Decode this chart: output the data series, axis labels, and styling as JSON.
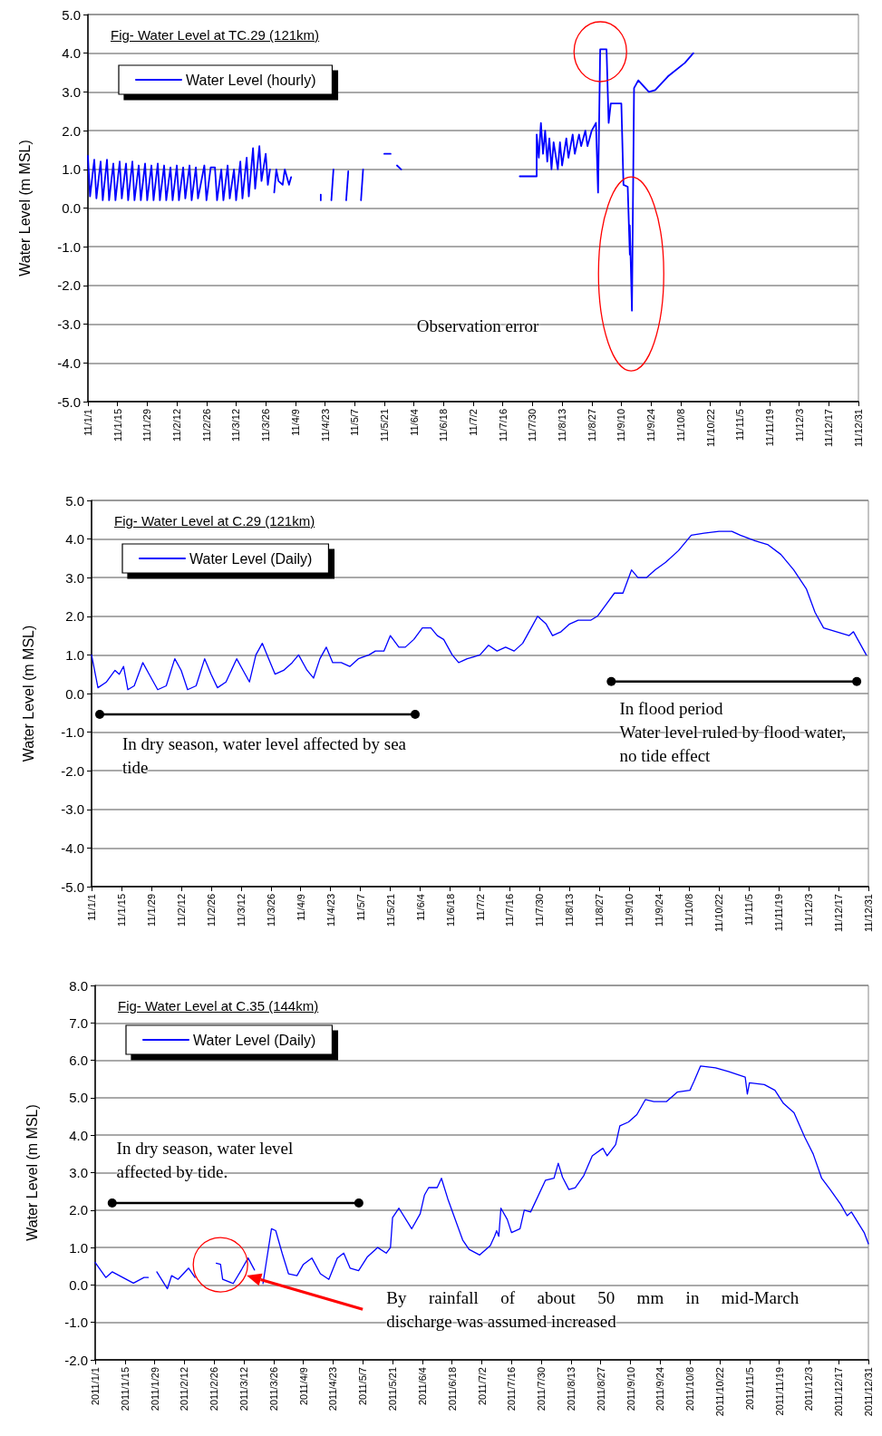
{
  "chart_data": [
    {
      "type": "line",
      "title": "Fig- Water Level at TC.29 (121km)",
      "ylabel": "Water Level (m MSL)",
      "grid": "y",
      "legend": "top left",
      "marker": "none",
      "annotations": [
        "Observation  error"
      ],
      "xlim": [
        "2011-01-01",
        "2011-12-31"
      ],
      "xticks": [
        {
          "value": "2011-01-01",
          "label": "11/1/1"
        },
        {
          "value": "2011-01-15",
          "label": "11/1/15"
        },
        {
          "value": "2011-01-29",
          "label": "11/1/29"
        },
        {
          "value": "2011-02-12",
          "label": "11/2/12"
        },
        {
          "value": "2011-02-26",
          "label": "11/2/26"
        },
        {
          "value": "2011-03-12",
          "label": "11/3/12"
        },
        {
          "value": "2011-03-26",
          "label": "11/3/26"
        },
        {
          "value": "2011-04-09",
          "label": "11/4/9"
        },
        {
          "value": "2011-04-23",
          "label": "11/4/23"
        },
        {
          "value": "2011-05-07",
          "label": "11/5/7"
        },
        {
          "value": "2011-05-21",
          "label": "11/5/21"
        },
        {
          "value": "2011-06-04",
          "label": "11/6/4"
        },
        {
          "value": "2011-06-18",
          "label": "11/6/18"
        },
        {
          "value": "2011-07-02",
          "label": "11/7/2"
        },
        {
          "value": "2011-07-16",
          "label": "11/7/16"
        },
        {
          "value": "2011-07-30",
          "label": "11/7/30"
        },
        {
          "value": "2011-08-13",
          "label": "11/8/13"
        },
        {
          "value": "2011-08-27",
          "label": "11/8/27"
        },
        {
          "value": "2011-09-10",
          "label": "11/9/10"
        },
        {
          "value": "2011-09-24",
          "label": "11/9/24"
        },
        {
          "value": "2011-10-08",
          "label": "11/10/8"
        },
        {
          "value": "2011-10-22",
          "label": "11/10/22"
        },
        {
          "value": "2011-11-05",
          "label": "11/11/5"
        },
        {
          "value": "2011-11-19",
          "label": "11/11/19"
        },
        {
          "value": "2011-12-03",
          "label": "11/12/3"
        },
        {
          "value": "2011-12-17",
          "label": "11/12/17"
        },
        {
          "value": "2011-12-31",
          "label": "11/12/31"
        }
      ],
      "ylim": [
        -5,
        5
      ],
      "yticks": [
        {
          "value": -5,
          "label": "-5.0"
        },
        {
          "value": -4,
          "label": "-4.0"
        },
        {
          "value": -3,
          "label": "-3.0"
        },
        {
          "value": -2,
          "label": "-2.0"
        },
        {
          "value": -1,
          "label": "-1.0"
        },
        {
          "value": 0,
          "label": "0.0"
        },
        {
          "value": 1,
          "label": "1.0"
        },
        {
          "value": 2,
          "label": "2.0"
        },
        {
          "value": 3,
          "label": "3.0"
        },
        {
          "value": 4,
          "label": "4.0"
        },
        {
          "value": 5,
          "label": "5.0"
        }
      ],
      "x": [
        "2011-01-01",
        "2011-01-02",
        "2011-01-04",
        "2011-01-05",
        "2011-01-07",
        "2011-01-08",
        "2011-01-10",
        "2011-01-11",
        "2011-01-13",
        "2011-01-14",
        "2011-01-16",
        "2011-01-17",
        "2011-01-19",
        "2011-01-20",
        "2011-01-22",
        "2011-01-23",
        "2011-01-25",
        "2011-01-26",
        "2011-01-28",
        "2011-01-29",
        "2011-01-31",
        "2011-02-01",
        "2011-02-03",
        "2011-02-04",
        "2011-02-06",
        "2011-02-07",
        "2011-02-09",
        "2011-02-10",
        "2011-02-12",
        "2011-02-13",
        "2011-02-15",
        "2011-02-16",
        "2011-02-18",
        "2011-02-19",
        "2011-02-21",
        "2011-02-22",
        "2011-02-25",
        "2011-02-26",
        "2011-02-28",
        "2011-03-02",
        "2011-03-03",
        "2011-03-05",
        "2011-03-06",
        "2011-03-08",
        "2011-03-09",
        "2011-03-11",
        "2011-03-12",
        "2011-03-14",
        "2011-03-15",
        "2011-03-17",
        "2011-03-18",
        "2011-03-20",
        "2011-03-21",
        "2011-03-23",
        "2011-03-24",
        "2011-03-26",
        "2011-03-27",
        "2011-03-28",
        "2011-03-29",
        "2011-03-30",
        "2011-03-31",
        "2011-04-01",
        "2011-04-03",
        "2011-04-04",
        "2011-04-06",
        "2011-04-07",
        "2011-04-08",
        "2011-04-21",
        "2011-04-21",
        "2011-04-23",
        "2011-04-26",
        "2011-04-27",
        "2011-04-28",
        "2011-05-03",
        "2011-05-04",
        "2011-05-05",
        "2011-05-10",
        "2011-05-11",
        "2011-05-12",
        "2011-05-21",
        "2011-05-24",
        "2011-05-25",
        "2011-05-27",
        "2011-05-29",
        "2011-05-31",
        "2011-07-24",
        "2011-08-01",
        "2011-08-01",
        "2011-08-02",
        "2011-08-03",
        "2011-08-04",
        "2011-08-05",
        "2011-08-06",
        "2011-08-07",
        "2011-08-08",
        "2011-08-09",
        "2011-08-11",
        "2011-08-12",
        "2011-08-13",
        "2011-08-15",
        "2011-08-16",
        "2011-08-18",
        "2011-08-19",
        "2011-08-21",
        "2011-08-22",
        "2011-08-24",
        "2011-08-25",
        "2011-08-27",
        "2011-08-29",
        "2011-08-30",
        "2011-08-31",
        "2011-09-03",
        "2011-09-04",
        "2011-09-05",
        "2011-09-10",
        "2011-09-11",
        "2011-09-13",
        "2011-09-14",
        "2011-09-14",
        "2011-09-15",
        "2011-09-16",
        "2011-09-18",
        "2011-09-23",
        "2011-09-26",
        "2011-10-02",
        "2011-10-10",
        "2011-10-14"
      ],
      "series": [
        {
          "name": "Water Level (hourly)",
          "color": "#0000ff",
          "values": [
            1.35,
            0.3,
            1.25,
            0.25,
            1.2,
            0.2,
            1.25,
            0.2,
            1.15,
            0.2,
            1.2,
            0.25,
            1.15,
            0.2,
            1.2,
            0.2,
            1.1,
            0.2,
            1.15,
            0.2,
            1.1,
            0.2,
            1.15,
            0.2,
            1.1,
            0.2,
            1.05,
            0.2,
            1.1,
            0.2,
            1.05,
            0.25,
            1.1,
            0.2,
            1.05,
            0.25,
            1.1,
            0.2,
            1.05,
            1.05,
            0.2,
            1.0,
            0.2,
            1.1,
            0.25,
            1.0,
            0.2,
            1.2,
            0.25,
            1.3,
            0.3,
            1.55,
            0.5,
            1.6,
            0.7,
            1.4,
            0.6,
            1.0,
            null,
            0.4,
            1.0,
            0.7,
            0.6,
            1.0,
            0.6,
            0.8,
            null,
            0.35,
            0.2,
            null,
            0.2,
            1.0,
            null,
            0.2,
            0.95,
            null,
            0.2,
            1.0,
            null,
            1.4,
            1.4,
            null,
            1.1,
            1.0,
            null,
            0.82,
            0.82,
            1.9,
            1.3,
            2.2,
            1.4,
            2.0,
            1.2,
            1.8,
            1.0,
            1.7,
            1.0,
            1.7,
            1.1,
            1.8,
            1.3,
            1.9,
            1.4,
            1.9,
            1.6,
            2.0,
            1.6,
            2.0,
            2.2,
            0.4,
            4.1,
            4.1,
            2.2,
            2.7,
            2.7,
            0.6,
            0.55,
            -1.2,
            -0.45,
            -2.65,
            3.1,
            3.3,
            3.0,
            3.05,
            3.4,
            3.75,
            4.0
          ]
        }
      ]
    },
    {
      "type": "line",
      "title": "Fig- Water Level at C.29 (121km)",
      "ylabel": "Water Level (m MSL)",
      "grid": "y",
      "legend": "top left",
      "marker": "none",
      "annotations": [
        "In dry season, water level affected by sea tide",
        "In flood period\nWater level ruled by flood water, no tide effect"
      ],
      "xlim": [
        "2011-01-01",
        "2011-12-31"
      ],
      "xticks": [
        {
          "value": "2011-01-01",
          "label": "11/1/1"
        },
        {
          "value": "2011-01-15",
          "label": "11/1/15"
        },
        {
          "value": "2011-01-29",
          "label": "11/1/29"
        },
        {
          "value": "2011-02-12",
          "label": "11/2/12"
        },
        {
          "value": "2011-02-26",
          "label": "11/2/26"
        },
        {
          "value": "2011-03-12",
          "label": "11/3/12"
        },
        {
          "value": "2011-03-26",
          "label": "11/3/26"
        },
        {
          "value": "2011-04-09",
          "label": "11/4/9"
        },
        {
          "value": "2011-04-23",
          "label": "11/4/23"
        },
        {
          "value": "2011-05-07",
          "label": "11/5/7"
        },
        {
          "value": "2011-05-21",
          "label": "11/5/21"
        },
        {
          "value": "2011-06-04",
          "label": "11/6/4"
        },
        {
          "value": "2011-06-18",
          "label": "11/6/18"
        },
        {
          "value": "2011-07-02",
          "label": "11/7/2"
        },
        {
          "value": "2011-07-16",
          "label": "11/7/16"
        },
        {
          "value": "2011-07-30",
          "label": "11/7/30"
        },
        {
          "value": "2011-08-13",
          "label": "11/8/13"
        },
        {
          "value": "2011-08-27",
          "label": "11/8/27"
        },
        {
          "value": "2011-09-10",
          "label": "11/9/10"
        },
        {
          "value": "2011-09-24",
          "label": "11/9/24"
        },
        {
          "value": "2011-10-08",
          "label": "11/10/8"
        },
        {
          "value": "2011-10-22",
          "label": "11/10/22"
        },
        {
          "value": "2011-11-05",
          "label": "11/11/5"
        },
        {
          "value": "2011-11-19",
          "label": "11/11/19"
        },
        {
          "value": "2011-12-03",
          "label": "11/12/3"
        },
        {
          "value": "2011-12-17",
          "label": "11/12/17"
        },
        {
          "value": "2011-12-31",
          "label": "11/12/31"
        }
      ],
      "ylim": [
        -5,
        5
      ],
      "yticks": [
        {
          "value": -5,
          "label": "-5.0"
        },
        {
          "value": -4,
          "label": "-4.0"
        },
        {
          "value": -3,
          "label": "-3.0"
        },
        {
          "value": -2,
          "label": "-2.0"
        },
        {
          "value": -1,
          "label": "-1.0"
        },
        {
          "value": 0,
          "label": "0.0"
        },
        {
          "value": 1,
          "label": "1.0"
        },
        {
          "value": 2,
          "label": "2.0"
        },
        {
          "value": 3,
          "label": "3.0"
        },
        {
          "value": 4,
          "label": "4.0"
        },
        {
          "value": 5,
          "label": "5.0"
        }
      ],
      "x": [
        "2011-01-01",
        "2011-01-04",
        "2011-01-08",
        "2011-01-12",
        "2011-01-14",
        "2011-01-16",
        "2011-01-18",
        "2011-01-21",
        "2011-01-25",
        "2011-01-28",
        "2011-02-01",
        "2011-02-05",
        "2011-02-09",
        "2011-02-12",
        "2011-02-15",
        "2011-02-19",
        "2011-02-23",
        "2011-02-26",
        "2011-03-01",
        "2011-03-05",
        "2011-03-10",
        "2011-03-13",
        "2011-03-16",
        "2011-03-19",
        "2011-03-22",
        "2011-03-25",
        "2011-03-28",
        "2011-04-01",
        "2011-04-05",
        "2011-04-08",
        "2011-04-12",
        "2011-04-15",
        "2011-04-18",
        "2011-04-21",
        "2011-04-24",
        "2011-04-28",
        "2011-05-02",
        "2011-05-06",
        "2011-05-11",
        "2011-05-14",
        "2011-05-18",
        "2011-05-21",
        "2011-05-25",
        "2011-05-28",
        "2011-06-01",
        "2011-06-05",
        "2011-06-09",
        "2011-06-12",
        "2011-06-15",
        "2011-06-19",
        "2011-06-22",
        "2011-06-26",
        "2011-06-29",
        "2011-07-02",
        "2011-07-06",
        "2011-07-10",
        "2011-07-14",
        "2011-07-18",
        "2011-07-22",
        "2011-07-26",
        "2011-07-29",
        "2011-08-02",
        "2011-08-05",
        "2011-08-09",
        "2011-08-13",
        "2011-08-17",
        "2011-08-23",
        "2011-08-26",
        "2011-08-30",
        "2011-09-03",
        "2011-09-07",
        "2011-09-09",
        "2011-09-11",
        "2011-09-14",
        "2011-09-18",
        "2011-09-22",
        "2011-09-27",
        "2011-10-03",
        "2011-10-09",
        "2011-10-15",
        "2011-10-22",
        "2011-10-28",
        "2011-11-01",
        "2011-11-08",
        "2011-11-14",
        "2011-11-20",
        "2011-11-26",
        "2011-12-02",
        "2011-12-06",
        "2011-12-10",
        "2011-12-16",
        "2011-12-22",
        "2011-12-24",
        "2011-12-27",
        "2011-12-30"
      ],
      "series": [
        {
          "name": "Water Level (Daily)",
          "color": "#0000ff",
          "values": [
            1.0,
            0.15,
            0.3,
            0.6,
            0.5,
            0.7,
            0.1,
            0.2,
            0.8,
            0.5,
            0.1,
            0.2,
            0.9,
            0.6,
            0.1,
            0.2,
            0.9,
            0.5,
            0.15,
            0.3,
            0.9,
            0.6,
            0.3,
            1.0,
            1.3,
            0.9,
            0.5,
            0.6,
            0.8,
            1.0,
            0.6,
            0.4,
            0.9,
            1.2,
            0.8,
            0.8,
            0.7,
            0.9,
            1.0,
            1.1,
            1.1,
            1.5,
            1.2,
            1.2,
            1.4,
            1.7,
            1.7,
            1.5,
            1.4,
            1.0,
            0.8,
            0.9,
            0.95,
            1.0,
            1.25,
            1.1,
            1.2,
            1.1,
            1.3,
            1.7,
            2.0,
            1.8,
            1.5,
            1.6,
            1.8,
            1.9,
            1.9,
            2.0,
            2.3,
            2.6,
            2.6,
            2.9,
            3.2,
            3.0,
            3.0,
            3.2,
            3.4,
            3.7,
            4.1,
            4.15,
            4.2,
            4.2,
            4.1,
            3.95,
            3.85,
            3.6,
            3.2,
            2.7,
            2.1,
            1.7,
            1.6,
            1.5,
            1.6,
            1.3,
            1.0
          ]
        }
      ]
    },
    {
      "type": "line",
      "title": "Fig- Water Level at C.35 (144km)",
      "ylabel": "Water Level (m MSL)",
      "grid": "y",
      "legend": "top left",
      "marker": "none",
      "annotations": [
        "In dry season, water level affected by tide.",
        "By rainfall of about 50 mm in mid-March\ndischarge was assumed increased"
      ],
      "xlim": [
        "2011-01-01",
        "2011-12-31"
      ],
      "xticks": [
        {
          "value": "2011-01-01",
          "label": "2011/1/1"
        },
        {
          "value": "2011-01-15",
          "label": "2011/1/15"
        },
        {
          "value": "2011-01-29",
          "label": "2011/1/29"
        },
        {
          "value": "2011-02-12",
          "label": "2011/2/12"
        },
        {
          "value": "2011-02-26",
          "label": "2011/2/26"
        },
        {
          "value": "2011-03-12",
          "label": "2011/3/12"
        },
        {
          "value": "2011-03-26",
          "label": "2011/3/26"
        },
        {
          "value": "2011-04-09",
          "label": "2011/4/9"
        },
        {
          "value": "2011-04-23",
          "label": "2011/4/23"
        },
        {
          "value": "2011-05-07",
          "label": "2011/5/7"
        },
        {
          "value": "2011-05-21",
          "label": "2011/5/21"
        },
        {
          "value": "2011-06-04",
          "label": "2011/6/4"
        },
        {
          "value": "2011-06-18",
          "label": "2011/6/18"
        },
        {
          "value": "2011-07-02",
          "label": "2011/7/2"
        },
        {
          "value": "2011-07-16",
          "label": "2011/7/16"
        },
        {
          "value": "2011-07-30",
          "label": "2011/7/30"
        },
        {
          "value": "2011-08-13",
          "label": "2011/8/13"
        },
        {
          "value": "2011-08-27",
          "label": "2011/8/27"
        },
        {
          "value": "2011-09-10",
          "label": "2011/9/10"
        },
        {
          "value": "2011-09-24",
          "label": "2011/9/24"
        },
        {
          "value": "2011-10-08",
          "label": "2011/10/8"
        },
        {
          "value": "2011-10-22",
          "label": "2011/10/22"
        },
        {
          "value": "2011-11-05",
          "label": "2011/11/5"
        },
        {
          "value": "2011-11-19",
          "label": "2011/11/19"
        },
        {
          "value": "2011-12-03",
          "label": "2011/12/3"
        },
        {
          "value": "2011-12-17",
          "label": "2011/12/17"
        },
        {
          "value": "2011-12-31",
          "label": "2011/12/31"
        }
      ],
      "ylim": [
        -2,
        8
      ],
      "yticks": [
        {
          "value": -2,
          "label": "-2.0"
        },
        {
          "value": -1,
          "label": "-1.0"
        },
        {
          "value": 0,
          "label": "0.0"
        },
        {
          "value": 1,
          "label": "1.0"
        },
        {
          "value": 2,
          "label": "2.0"
        },
        {
          "value": 3,
          "label": "3.0"
        },
        {
          "value": 4,
          "label": "4.0"
        },
        {
          "value": 5,
          "label": "5.0"
        },
        {
          "value": 6,
          "label": "6.0"
        },
        {
          "value": 7,
          "label": "7.0"
        },
        {
          "value": 8,
          "label": "8.0"
        }
      ],
      "x": [
        "2011-01-01",
        "2011-01-06",
        "2011-01-09",
        "2011-01-19",
        "2011-01-24",
        "2011-01-26",
        "2011-01-28",
        "2011-01-30",
        "2011-02-04",
        "2011-02-06",
        "2011-02-09",
        "2011-02-14",
        "2011-02-17",
        "2011-02-22",
        "2011-02-27",
        "2011-03-01",
        "2011-03-02",
        "2011-03-07",
        "2011-03-11",
        "2011-03-14",
        "2011-03-17",
        "2011-03-19",
        "2011-03-21",
        "2011-03-25",
        "2011-03-27",
        "2011-03-30",
        "2011-04-02",
        "2011-04-06",
        "2011-04-09",
        "2011-04-13",
        "2011-04-17",
        "2011-04-21",
        "2011-04-25",
        "2011-04-28",
        "2011-05-01",
        "2011-05-05",
        "2011-05-09",
        "2011-05-14",
        "2011-05-18",
        "2011-05-20",
        "2011-05-21",
        "2011-05-24",
        "2011-05-30",
        "2011-06-03",
        "2011-06-05",
        "2011-06-07",
        "2011-06-11",
        "2011-06-13",
        "2011-06-16",
        "2011-06-23",
        "2011-06-26",
        "2011-07-01",
        "2011-07-06",
        "2011-07-08",
        "2011-07-09",
        "2011-07-10",
        "2011-07-11",
        "2011-07-14",
        "2011-07-16",
        "2011-07-20",
        "2011-07-22",
        "2011-07-25",
        "2011-08-01",
        "2011-08-05",
        "2011-08-07",
        "2011-08-09",
        "2011-08-12",
        "2011-08-15",
        "2011-08-19",
        "2011-08-23",
        "2011-08-28",
        "2011-08-30",
        "2011-09-03",
        "2011-09-05",
        "2011-09-09",
        "2011-09-13",
        "2011-09-17",
        "2011-09-21",
        "2011-09-27",
        "2011-10-02",
        "2011-10-08",
        "2011-10-10",
        "2011-10-13",
        "2011-10-20",
        "2011-10-26",
        "2011-11-03",
        "2011-11-04",
        "2011-11-05",
        "2011-11-12",
        "2011-11-17",
        "2011-11-21",
        "2011-11-26",
        "2011-12-01",
        "2011-12-05",
        "2011-12-09",
        "2011-12-13",
        "2011-12-18",
        "2011-12-21",
        "2011-12-23",
        "2011-12-29",
        "2011-12-31"
      ],
      "series": [
        {
          "name": "Water Level (Daily)",
          "color": "#0000ff",
          "values": [
            0.6,
            0.2,
            0.35,
            0.05,
            0.2,
            0.2,
            null,
            0.35,
            -0.1,
            0.25,
            0.15,
            0.45,
            0.2,
            null,
            0.58,
            0.55,
            0.15,
            0.04,
            0.42,
            0.72,
            0.4,
            null,
            0.04,
            1.5,
            1.45,
            0.85,
            0.3,
            0.25,
            0.55,
            0.72,
            0.3,
            0.15,
            0.72,
            0.85,
            0.45,
            0.38,
            0.74,
            1.0,
            0.85,
            1.0,
            1.8,
            2.05,
            1.5,
            1.9,
            2.4,
            2.6,
            2.6,
            2.85,
            2.3,
            1.2,
            0.95,
            0.8,
            1.05,
            1.3,
            1.45,
            1.3,
            2.05,
            1.75,
            1.4,
            1.5,
            2.0,
            1.95,
            2.8,
            2.85,
            3.25,
            2.88,
            2.55,
            2.6,
            2.92,
            3.45,
            3.65,
            3.45,
            3.75,
            4.25,
            4.35,
            4.55,
            4.95,
            4.9,
            4.9,
            5.15,
            5.2,
            5.45,
            5.85,
            5.8,
            5.7,
            5.55,
            5.1,
            5.4,
            5.35,
            5.2,
            4.85,
            4.6,
            3.95,
            3.5,
            2.85,
            2.55,
            2.15,
            1.85,
            1.95,
            1.4,
            1.1
          ]
        }
      ]
    }
  ]
}
